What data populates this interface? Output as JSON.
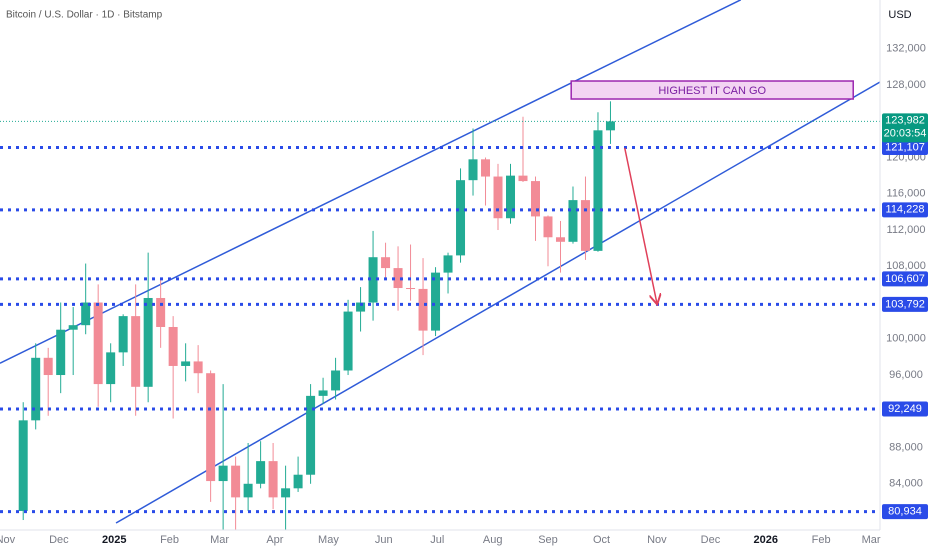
{
  "chart_data": {
    "type": "candlestick",
    "title": "Bitcoin / U.S. Dollar · 1D · Bitstamp",
    "currency": "USD",
    "up_color": "#22ab94",
    "down_color": "#f28b96",
    "xlim": [
      -3,
      490
    ],
    "ylim": [
      78900,
      137380
    ],
    "xticks": [
      {
        "value": 0,
        "label": "Nov"
      },
      {
        "value": 30,
        "label": "Dec"
      },
      {
        "value": 61,
        "label": "2025"
      },
      {
        "value": 92,
        "label": "Feb"
      },
      {
        "value": 120,
        "label": "Mar"
      },
      {
        "value": 151,
        "label": "Apr"
      },
      {
        "value": 181,
        "label": "May"
      },
      {
        "value": 212,
        "label": "Jun"
      },
      {
        "value": 242,
        "label": "Jul"
      },
      {
        "value": 273,
        "label": "Aug"
      },
      {
        "value": 304,
        "label": "Sep"
      },
      {
        "value": 334,
        "label": "Oct"
      },
      {
        "value": 365,
        "label": "Nov"
      },
      {
        "value": 395,
        "label": "Dec"
      },
      {
        "value": 426,
        "label": "2026"
      },
      {
        "value": 457,
        "label": "Feb"
      },
      {
        "value": 485,
        "label": "Mar"
      }
    ],
    "yticks": [
      {
        "value": 84000,
        "label": "84,000"
      },
      {
        "value": 88000,
        "label": "88,000"
      },
      {
        "value": 96000,
        "label": "96,000"
      },
      {
        "value": 100000,
        "label": "100,000"
      },
      {
        "value": 108000,
        "label": "108,000"
      },
      {
        "value": 112000,
        "label": "112,000"
      },
      {
        "value": 116000,
        "label": "116,000"
      },
      {
        "value": 120000,
        "label": "120,000"
      },
      {
        "value": 128000,
        "label": "128,000"
      },
      {
        "value": 132000,
        "label": "132,000"
      }
    ],
    "x": [
      10,
      17,
      24,
      31,
      38,
      45,
      52,
      59,
      66,
      73,
      80,
      87,
      94,
      101,
      108,
      115,
      122,
      129,
      136,
      143,
      150,
      157,
      164,
      171,
      178,
      185,
      192,
      199,
      206,
      213,
      220,
      227,
      234,
      241,
      248,
      255,
      262,
      269,
      276,
      283,
      290,
      297,
      304,
      311,
      318,
      325,
      332,
      339
    ],
    "open": [
      81000,
      91000,
      97900,
      96000,
      101000,
      101500,
      104000,
      95000,
      98500,
      102500,
      94700,
      104500,
      101300,
      97000,
      97500,
      96200,
      84300,
      86000,
      82500,
      84000,
      86500,
      82500,
      83500,
      85000,
      93700,
      94300,
      96500,
      103000,
      104000,
      109000,
      107800,
      105600,
      105500,
      100900,
      107300,
      109200,
      117500,
      119800,
      117900,
      113300,
      118000,
      117400,
      113500,
      111200,
      110700,
      115300,
      109700,
      123000
    ],
    "high": [
      93000,
      99500,
      99000,
      104000,
      103500,
      108300,
      106000,
      99500,
      102700,
      106000,
      109500,
      106500,
      102500,
      99500,
      99300,
      96500,
      95000,
      87000,
      88500,
      88700,
      88500,
      86000,
      87000,
      95000,
      95700,
      97900,
      104300,
      105700,
      111900,
      110600,
      110200,
      110400,
      108900,
      107900,
      109500,
      118800,
      123200,
      120000,
      119300,
      119300,
      124500,
      117900,
      113600,
      113000,
      116800,
      117900,
      125000,
      126200
    ],
    "low": [
      80000,
      90000,
      91500,
      94000,
      96000,
      100500,
      92500,
      93000,
      97000,
      91500,
      93000,
      99000,
      91200,
      95300,
      94000,
      82000,
      78200,
      76600,
      81000,
      83500,
      81200,
      74500,
      83100,
      84000,
      92800,
      93300,
      96000,
      100800,
      102000,
      106500,
      103100,
      104200,
      98200,
      100300,
      105000,
      108400,
      115800,
      114700,
      112000,
      112700,
      117300,
      110800,
      108000,
      107300,
      110500,
      108700,
      109600,
      121500
    ],
    "close": [
      91000,
      97900,
      96000,
      101000,
      101500,
      104000,
      95000,
      98500,
      102500,
      94700,
      104500,
      101300,
      97000,
      97500,
      96200,
      84300,
      86000,
      82500,
      84000,
      86500,
      82500,
      83500,
      85000,
      93700,
      94300,
      96500,
      103000,
      104000,
      109000,
      107800,
      105600,
      105500,
      100900,
      107300,
      109200,
      117500,
      119800,
      117900,
      113300,
      118000,
      117400,
      113500,
      111200,
      110700,
      115300,
      109700,
      123000,
      123982
    ],
    "last_price": {
      "value": 123982,
      "label": "123,982"
    },
    "countdown": "20:03:54",
    "levels": [
      {
        "value": 121107,
        "label": "121,107"
      },
      {
        "value": 114228,
        "label": "114,228"
      },
      {
        "value": 106607,
        "label": "106,607"
      },
      {
        "value": 103792,
        "label": "103,792"
      },
      {
        "value": 92249,
        "label": "92,249"
      },
      {
        "value": 80934,
        "label": "80,934"
      }
    ],
    "level_color": "#2a4be8",
    "channel": [
      {
        "x": [
          -3,
          412
        ],
        "y": [
          97300,
          137400
        ]
      },
      {
        "x": [
          62,
          490
        ],
        "y": [
          79670,
          128330
        ]
      }
    ],
    "zone": {
      "text": "HIGHEST IT CAN GO",
      "x": [
        317,
        475
      ],
      "y": [
        126455,
        128441
      ]
    },
    "arrow": {
      "x": [
        347,
        365
      ],
      "y": [
        121050,
        103950
      ]
    }
  }
}
